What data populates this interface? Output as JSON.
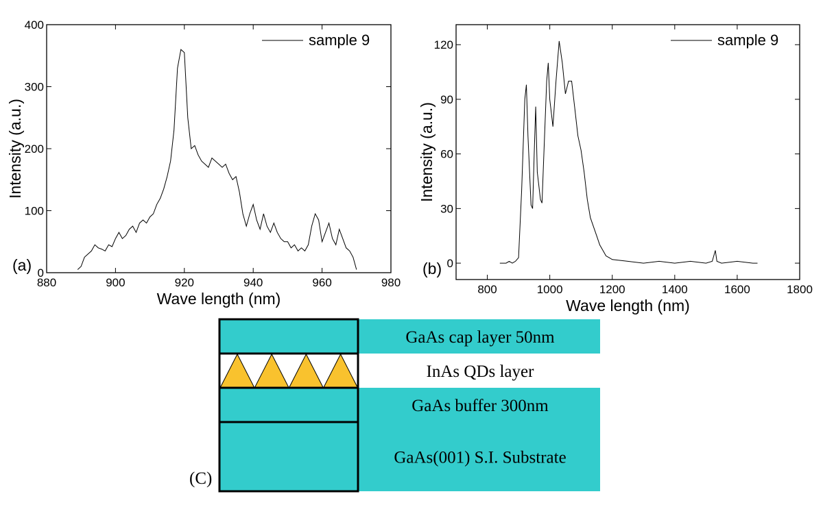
{
  "chart_data": [
    {
      "type": "line",
      "panel_label": "(a)",
      "xlabel": "Wave length (nm)",
      "ylabel": "Intensity (a.u.)",
      "legend": "upper right",
      "xlim": [
        880,
        980
      ],
      "ylim": [
        0,
        400
      ],
      "xticks": [
        880,
        900,
        920,
        940,
        960,
        980
      ],
      "yticks": [
        0,
        100,
        200,
        300,
        400
      ],
      "x": [
        889,
        890,
        891,
        892,
        893,
        894,
        895,
        896,
        897,
        898,
        899,
        900,
        901,
        902,
        903,
        904,
        905,
        906,
        907,
        908,
        909,
        910,
        911,
        912,
        913,
        914,
        915,
        916,
        917,
        918,
        919,
        920,
        921,
        922,
        923,
        924,
        925,
        926,
        927,
        928,
        929,
        930,
        931,
        932,
        933,
        934,
        935,
        936,
        937,
        938,
        939,
        940,
        941,
        942,
        943,
        944,
        945,
        946,
        947,
        948,
        949,
        950,
        951,
        952,
        953,
        954,
        955,
        956,
        957,
        958,
        959,
        960,
        961,
        962,
        963,
        964,
        965,
        966,
        967,
        968,
        969,
        970
      ],
      "series": [
        {
          "name": "sample 9",
          "color": "#000000",
          "values": [
            5,
            10,
            25,
            30,
            35,
            45,
            40,
            38,
            35,
            45,
            42,
            55,
            65,
            55,
            60,
            70,
            75,
            65,
            80,
            85,
            80,
            90,
            95,
            110,
            120,
            135,
            155,
            180,
            230,
            330,
            360,
            355,
            250,
            200,
            205,
            190,
            180,
            175,
            170,
            185,
            180,
            175,
            170,
            175,
            160,
            150,
            155,
            130,
            95,
            75,
            95,
            110,
            85,
            70,
            95,
            75,
            65,
            80,
            65,
            55,
            50,
            50,
            40,
            45,
            35,
            40,
            35,
            45,
            75,
            95,
            85,
            50,
            65,
            80,
            55,
            45,
            70,
            55,
            40,
            35,
            25,
            5
          ]
        }
      ]
    },
    {
      "type": "line",
      "panel_label": "(b)",
      "xlabel": "Wave length (nm)",
      "ylabel": "Intensity (a.u.)",
      "legend": "upper right",
      "xlim": [
        700,
        1800
      ],
      "ylim": [
        -9,
        131
      ],
      "xticks": [
        800,
        1000,
        1200,
        1400,
        1600,
        1800
      ],
      "yticks": [
        0,
        30,
        60,
        90,
        120
      ],
      "x": [
        840,
        850,
        860,
        870,
        880,
        890,
        900,
        910,
        920,
        925,
        930,
        940,
        945,
        950,
        955,
        960,
        970,
        975,
        980,
        990,
        995,
        1000,
        1010,
        1020,
        1030,
        1040,
        1050,
        1060,
        1070,
        1080,
        1090,
        1100,
        1110,
        1120,
        1130,
        1140,
        1150,
        1160,
        1170,
        1180,
        1190,
        1200,
        1250,
        1300,
        1350,
        1400,
        1450,
        1500,
        1520,
        1530,
        1535,
        1550,
        1600,
        1650,
        1665
      ],
      "series": [
        {
          "name": "sample 9",
          "color": "#000000",
          "values": [
            0,
            0,
            0,
            1,
            0,
            1,
            3,
            40,
            90,
            98,
            70,
            32,
            30,
            60,
            86,
            50,
            35,
            33,
            55,
            100,
            110,
            90,
            75,
            100,
            122,
            110,
            93,
            100,
            100,
            85,
            70,
            62,
            50,
            35,
            25,
            20,
            15,
            10,
            7,
            4,
            3,
            2,
            1,
            0,
            1,
            0,
            1,
            0,
            1,
            7,
            1,
            0,
            1,
            0,
            0
          ]
        }
      ]
    }
  ],
  "diagram": {
    "label": "(C)",
    "layers": [
      {
        "label": "GaAs cap layer 50nm"
      },
      {
        "label": "InAs QDs layer"
      },
      {
        "label": "GaAs buffer 300nm"
      },
      {
        "label": "GaAs(001) S.I. Substrate"
      }
    ]
  }
}
